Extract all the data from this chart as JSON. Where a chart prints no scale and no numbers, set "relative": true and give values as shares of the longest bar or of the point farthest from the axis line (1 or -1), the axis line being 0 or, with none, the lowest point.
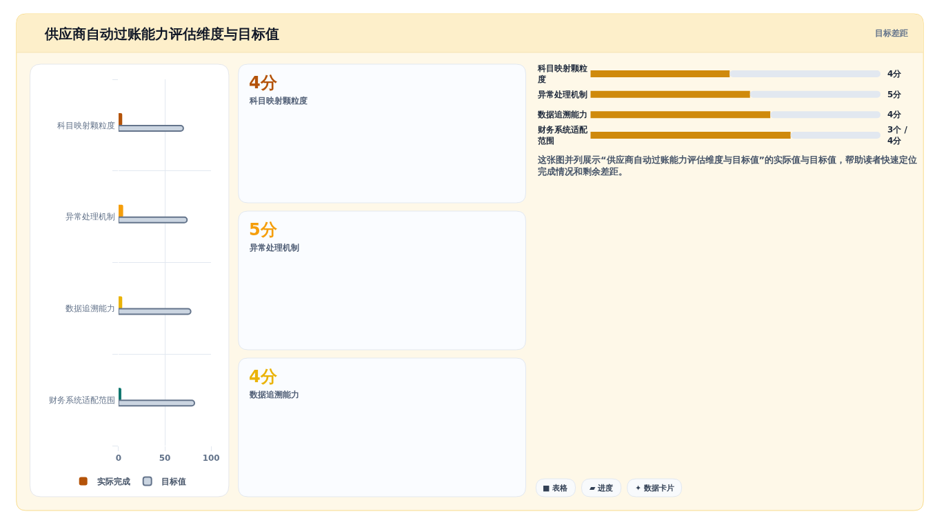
{
  "chart_data": [
    {
      "type": "bar",
      "orientation": "horizontal",
      "title": "供应商自动过账能力评估维度与目标值",
      "annotations": [
        "目标差距"
      ],
      "categories": [
        "科目映射颗粒度",
        "异常处理机制",
        "数据追溯能力",
        "财务系统适配范围"
      ],
      "series": [
        {
          "name": "实际完成",
          "colors": [
            "#b45309",
            "#f59e0b",
            "#eab308",
            "#0f766e"
          ],
          "values": [
            4,
            5,
            4,
            3
          ]
        },
        {
          "name": "目标值",
          "color": "#cbd5e1",
          "values": [
            70,
            74,
            78,
            82
          ]
        }
      ],
      "xlim": [
        0,
        100
      ],
      "xticks": [
        0,
        50,
        100
      ],
      "grid": true,
      "legend": "bottom"
    },
    {
      "type": "other",
      "title": "4分",
      "subtitle": "科目映射颗粒度",
      "color": "#b45309"
    },
    {
      "type": "other",
      "title": "5分",
      "subtitle": "异常处理机制",
      "color": "#f59e0b"
    },
    {
      "type": "other",
      "title": "4分",
      "subtitle": "数据追溯能力",
      "color": "#eab308"
    },
    {
      "type": "bar",
      "orientation": "horizontal",
      "stacked": true,
      "relative": true,
      "categories": [
        "科目映射颗粒度",
        "异常处理机制",
        "数据追溯能力",
        "财务系统适配范围"
      ],
      "series": [
        {
          "color": "#cf8a0c",
          "values": [
            0.48,
            0.55,
            0.62,
            0.69
          ]
        },
        {
          "color": "#e2e8f0",
          "values": [
            0.52,
            0.45,
            0.38,
            0.31
          ]
        }
      ],
      "annotations": [
        "4分",
        "5分",
        "4分",
        "3个 / 4分",
        "这张图并列展示“供应商自动过账能力评估维度与目标值”的实际值与目标值，帮助读者快速定位完成情况和剩余差距。",
        "■ 表格",
        "▰ 进度",
        "✦ 数据卡片"
      ]
    }
  ]
}
